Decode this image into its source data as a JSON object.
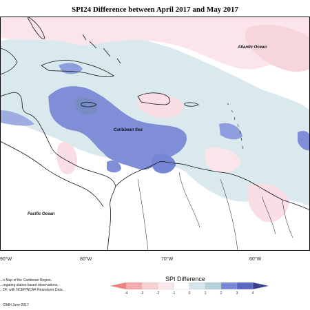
{
  "title": "SPI24 Difference between April 2017 and May 2017",
  "labels": {
    "atlantic": "Atlantic Ocean",
    "caribbean": "Caribbean Sea",
    "pacific": "Pacific Ocean"
  },
  "longitude_ticks": [
    "90°W",
    "80°W",
    "70°W",
    "60°W"
  ],
  "credit_lines": [
    "...n Map of the Caribbean Region.",
    "...regating station based observations,",
    "...DF, with NCEP/NCAR Reanalysis Data."
  ],
  "footer": "CIMH June-2017",
  "legend": {
    "title": "SPI Difference",
    "ticks": [
      "-4",
      "-3",
      "-2",
      "-1",
      "0",
      "1",
      "2",
      "3",
      "4"
    ],
    "colors": [
      "#f08080",
      "#f4aaaa",
      "#f8d0d0",
      "#fbe6ea",
      "#ffffff",
      "#d4e6ec",
      "#b4d0da",
      "#7a88d8",
      "#5b66c4",
      "#3b3f90"
    ]
  }
}
